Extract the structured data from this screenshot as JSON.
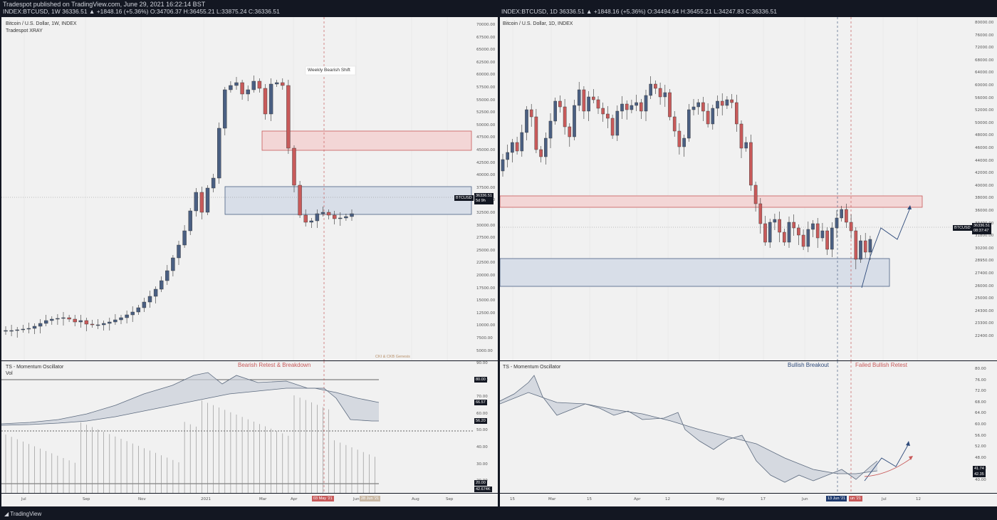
{
  "publish_line": "Tradespot published on TradingView.com, June 29, 2021 16:22:14 BST",
  "publisher": "Tradespot",
  "left": {
    "ticker_line": "INDEX:BTCUSD, 1W 36336.51 ▲ +1848.16 (+5.36%) O:34706.37 H:36455.21 L:33875.24 C:36336.51",
    "title": "Bitcoin / U.S. Dollar, 1W, INDEX",
    "indicator": "Tradespot XRAY",
    "annotation": "Weekly Bearish Shift",
    "watermark": "CKI & CKB Genesis",
    "price_badge": "BTCUSD",
    "price_badge_value": "36336.51",
    "price_badge_time": "5d 9h",
    "price_axis": [
      "70000.00",
      "67500.00",
      "65000.00",
      "62500.00",
      "60000.00",
      "57500.00",
      "55000.00",
      "52500.00",
      "50000.00",
      "47500.00",
      "45000.00",
      "42500.00",
      "40000.00",
      "37500.00",
      "35000.00",
      "32500.00",
      "30000.00",
      "27500.00",
      "25000.00",
      "22500.00",
      "20000.00",
      "17500.00",
      "15000.00",
      "12500.00",
      "10000.00",
      "7500.00",
      "5000.00"
    ],
    "osc_title": "TS - Momentum Oscillator",
    "osc_sub": "Vol",
    "osc_annotation": "Bearish Retest & Breakdown",
    "osc_axis": [
      "90.00",
      "80.00",
      "70.00",
      "60.00",
      "50.00",
      "40.00",
      "30.00",
      "20.00"
    ],
    "osc_badges": [
      "80.00",
      "66.57",
      "56.20",
      "20.00",
      "42.674K"
    ],
    "time_axis": [
      "Jul",
      "Sep",
      "Nov",
      "2021",
      "Mar",
      "Apr",
      "Jun",
      "Aug",
      "Sep"
    ],
    "time_badges": [
      "03 May '21",
      "28 Jun '21"
    ]
  },
  "right": {
    "ticker_line": "INDEX:BTCUSD, 1D 36336.51 ▲ +1848.16 (+5.36%) O:34494.64 H:36455.21 L:34247.83 C:36336.51",
    "title": "Bitcoin / U.S. Dollar, 1D, INDEX",
    "price_badge": "BTCUSD",
    "price_badge_value": "36336.51",
    "price_badge_time": "08:37:47",
    "price_axis": [
      "80000.00",
      "76000.00",
      "72000.00",
      "68000.00",
      "64000.00",
      "60000.00",
      "56000.00",
      "52000.00",
      "50000.00",
      "48000.00",
      "46000.00",
      "44000.00",
      "42000.00",
      "40000.00",
      "38000.00",
      "36000.00",
      "33400.00",
      "31800.00",
      "30200.00",
      "28950.00",
      "27400.00",
      "26000.00",
      "25000.00",
      "24300.00",
      "23300.00",
      "22400.00"
    ],
    "osc_title": "TS - Momentum Oscillator",
    "osc_annotation_1": "Bullish Breakout",
    "osc_annotation_2": "Failed Bullish Retest",
    "osc_axis": [
      "80.00",
      "76.00",
      "72.00",
      "68.00",
      "64.00",
      "60.00",
      "56.00",
      "52.00",
      "48.00",
      "44.00",
      "40.00"
    ],
    "osc_badges": [
      "41.74",
      "42.35"
    ],
    "time_axis": [
      "15",
      "Mar",
      "15",
      "Apr",
      "12",
      "May",
      "17",
      "Jun",
      "Jul",
      "12"
    ],
    "time_badges": [
      "13 Jun '21",
      "un '21"
    ]
  },
  "footer_logo": "TradingView",
  "colors": {
    "bull": "#4a5f82",
    "bear": "#c85a5a",
    "bg": "#f1f1f1"
  }
}
